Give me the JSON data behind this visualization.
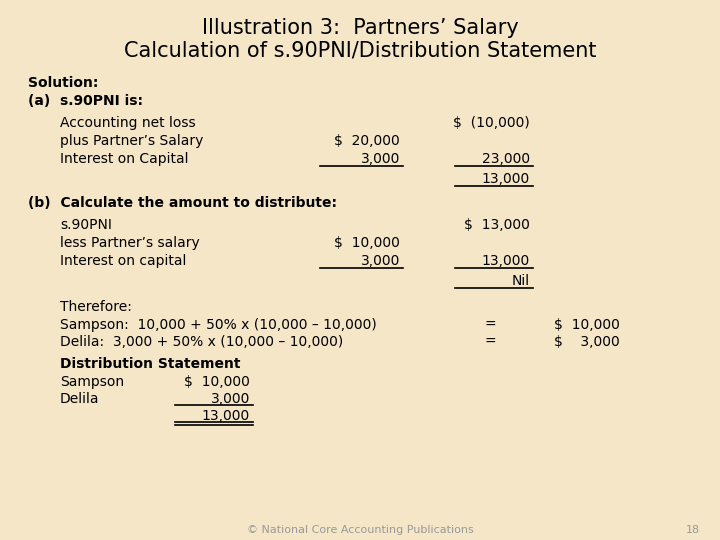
{
  "title_line1": "Illustration 3:  Partners’ Salary",
  "title_line2": "Calculation of s.90PNI/Distribution Statement",
  "bg_color": "#f5e6c8",
  "title_fontsize": 15,
  "body_fontsize": 10,
  "footer_text": "© National Core Accounting Publications",
  "footer_page": "18"
}
